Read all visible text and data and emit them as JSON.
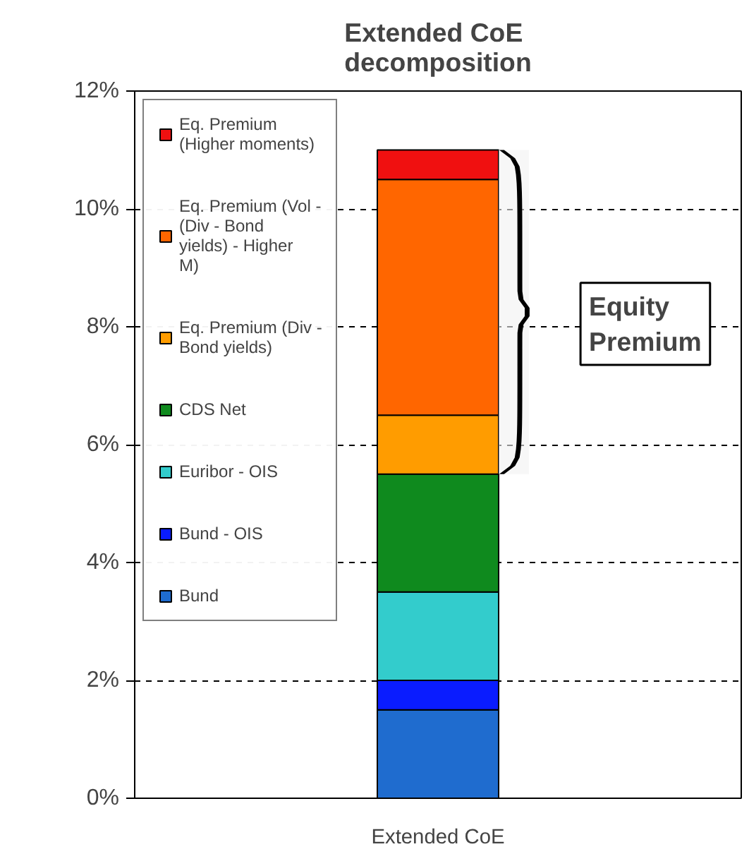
{
  "chart_data": {
    "type": "bar",
    "title": "Extended CoE decomposition",
    "stacked": true,
    "categories": [
      "Extended CoE"
    ],
    "series": [
      {
        "name": "Bund",
        "color": "#1f6ccf",
        "values": [
          1.5
        ]
      },
      {
        "name": "Bund - OIS",
        "color": "#0a1cff",
        "values": [
          0.5
        ]
      },
      {
        "name": "Euribor - OIS",
        "color": "#33cccc",
        "values": [
          1.5
        ]
      },
      {
        "name": "CDS Net",
        "color": "#0f8a1e",
        "values": [
          2.0
        ]
      },
      {
        "name": "Eq. Premium (Div - Bond yields)",
        "color": "#ff9c00",
        "values": [
          1.0
        ]
      },
      {
        "name": "Eq. Premium (Vol - (Div - Bond yields) - Higher M)",
        "color": "#ff6600",
        "values": [
          4.0
        ]
      },
      {
        "name": "Eq. Premium (Higher moments)",
        "color": "#f01010",
        "values": [
          0.5
        ]
      }
    ],
    "ylim": [
      0,
      12
    ],
    "yticks": [
      {
        "value": 0,
        "label": "0%"
      },
      {
        "value": 2,
        "label": "2%"
      },
      {
        "value": 4,
        "label": "4%"
      },
      {
        "value": 6,
        "label": "6%"
      },
      {
        "value": 8,
        "label": "8%"
      },
      {
        "value": 10,
        "label": "10%"
      },
      {
        "value": 12,
        "label": "12%"
      }
    ],
    "grid": "y",
    "legend": "left",
    "bands": [
      {
        "axis": "y",
        "from": 5.5,
        "to": 11,
        "label": "Equity Premium"
      }
    ]
  }
}
